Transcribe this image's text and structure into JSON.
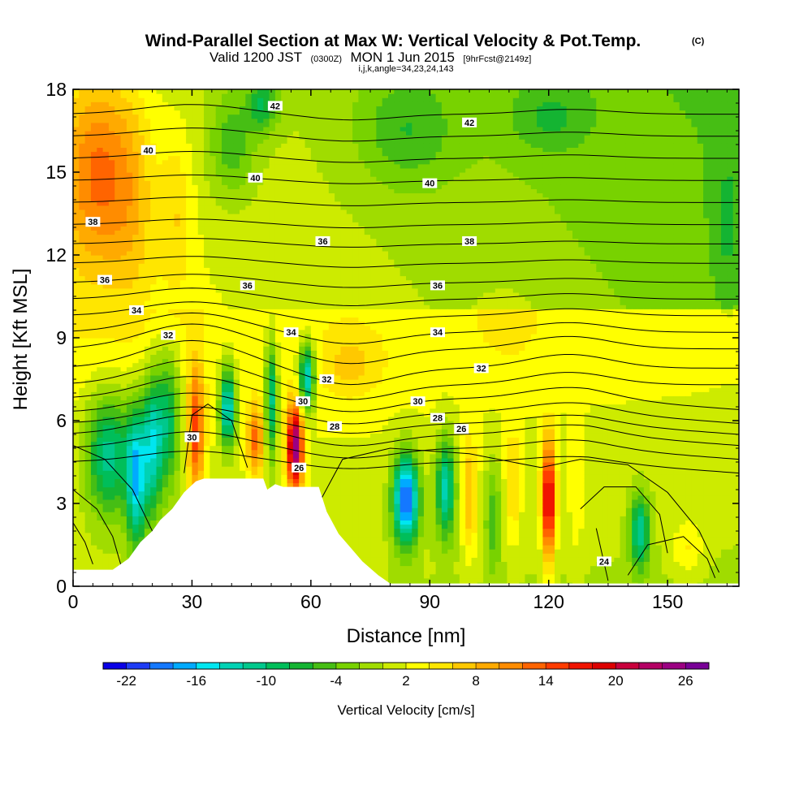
{
  "chart_data": {
    "type": "heatmap",
    "title": "Wind-Parallel Section at Max W: Vertical Velocity & Pot.Temp.",
    "title_mark": "(C)",
    "subtitle": {
      "valid": "Valid 1200 JST",
      "utc": "(0300Z)",
      "date": "MON 1 Jun 2015",
      "fcst": "[9hrFcst@2149z]"
    },
    "subtitle2": "i,j,k,angle=34,23,24,143",
    "xlabel": "Distance [nm]",
    "ylabel": "Height [Kft MSL]",
    "xlim": [
      0,
      168
    ],
    "ylim": [
      0,
      18
    ],
    "x_ticks": [
      0,
      30,
      60,
      90,
      120,
      150
    ],
    "y_ticks": [
      0,
      3,
      6,
      9,
      12,
      15,
      18
    ],
    "colorbar": {
      "label": "Vertical Velocity [cm/s]",
      "min": -24,
      "max": 28,
      "step": 2,
      "tick_labels": [
        -22,
        -16,
        -10,
        -4,
        2,
        8,
        14,
        20,
        26
      ],
      "colors": [
        "#0a00e6",
        "#1e3cf5",
        "#1478ff",
        "#00aaff",
        "#00e6f0",
        "#00d2b4",
        "#00c88c",
        "#00be5a",
        "#14b432",
        "#46be14",
        "#78d200",
        "#a0dc00",
        "#cdeb00",
        "#ffff00",
        "#ffe600",
        "#ffc800",
        "#ffaa00",
        "#ff8c00",
        "#ff6400",
        "#ff3c00",
        "#f01400",
        "#dc0000",
        "#c8003c",
        "#b40064",
        "#9b0082",
        "#780096"
      ]
    },
    "theta_contours": {
      "levels_labeled": [
        24,
        26,
        28,
        30,
        32,
        34,
        36,
        38,
        40,
        42
      ],
      "label_positions_data": [
        {
          "level": "42",
          "x": 51,
          "y": 17.4
        },
        {
          "level": "42",
          "x": 100,
          "y": 16.8
        },
        {
          "level": "40",
          "x": 19,
          "y": 15.8
        },
        {
          "level": "40",
          "x": 46,
          "y": 14.8
        },
        {
          "level": "40",
          "x": 90,
          "y": 14.6
        },
        {
          "level": "38",
          "x": 5,
          "y": 13.2
        },
        {
          "level": "38",
          "x": 100,
          "y": 12.5
        },
        {
          "level": "36",
          "x": 8,
          "y": 11.1
        },
        {
          "level": "36",
          "x": 44,
          "y": 10.9
        },
        {
          "level": "36",
          "x": 63,
          "y": 12.5
        },
        {
          "level": "36",
          "x": 92,
          "y": 10.9
        },
        {
          "level": "34",
          "x": 16,
          "y": 10.0
        },
        {
          "level": "34",
          "x": 55,
          "y": 9.2
        },
        {
          "level": "34",
          "x": 92,
          "y": 9.2
        },
        {
          "level": "32",
          "x": 24,
          "y": 9.1
        },
        {
          "level": "32",
          "x": 64,
          "y": 7.5
        },
        {
          "level": "32",
          "x": 103,
          "y": 7.9
        },
        {
          "level": "30",
          "x": 58,
          "y": 6.7
        },
        {
          "level": "30",
          "x": 87,
          "y": 6.7
        },
        {
          "level": "30",
          "x": 30,
          "y": 5.4
        },
        {
          "level": "28",
          "x": 66,
          "y": 5.8
        },
        {
          "level": "28",
          "x": 92,
          "y": 6.1
        },
        {
          "level": "26",
          "x": 98,
          "y": 5.7
        },
        {
          "level": "26",
          "x": 57,
          "y": 4.3
        },
        {
          "level": "24",
          "x": 134,
          "y": 0.9
        }
      ]
    },
    "terrain_profile": [
      [
        0,
        0.6
      ],
      [
        10,
        0.6
      ],
      [
        14,
        1.0
      ],
      [
        17,
        1.6
      ],
      [
        20,
        2.0
      ],
      [
        22,
        2.4
      ],
      [
        25,
        2.8
      ],
      [
        28,
        3.4
      ],
      [
        31,
        3.8
      ],
      [
        33,
        3.9
      ],
      [
        48,
        3.9
      ],
      [
        49,
        3.5
      ],
      [
        51,
        3.7
      ],
      [
        53,
        3.6
      ],
      [
        62,
        3.6
      ],
      [
        64,
        2.7
      ],
      [
        67,
        1.9
      ],
      [
        70,
        1.4
      ],
      [
        73,
        0.9
      ],
      [
        77,
        0.4
      ],
      [
        80,
        0.1
      ],
      [
        168,
        0.1
      ]
    ],
    "w_features": [
      {
        "x": 6,
        "y": 15,
        "w": 10,
        "sx": 9,
        "sy": 3.5
      },
      {
        "x": 15,
        "y": 14,
        "w": 4,
        "sx": 6,
        "sy": 4
      },
      {
        "x": 26,
        "y": 13.5,
        "w": 4,
        "sx": 4,
        "sy": 3
      },
      {
        "x": 40,
        "y": 16,
        "w": -6,
        "sx": 6,
        "sy": 2
      },
      {
        "x": 48,
        "y": 17.5,
        "w": -8,
        "sx": 4,
        "sy": 1
      },
      {
        "x": 84,
        "y": 16.5,
        "w": -5,
        "sx": 12,
        "sy": 2
      },
      {
        "x": 120,
        "y": 17,
        "w": -4,
        "sx": 10,
        "sy": 1.3
      },
      {
        "x": 165,
        "y": 13,
        "w": -3,
        "sx": 4,
        "sy": 3
      },
      {
        "x": 70,
        "y": 8,
        "w": 4,
        "sx": 8,
        "sy": 1.2
      },
      {
        "x": 110,
        "y": 9.5,
        "w": 2,
        "sx": 8,
        "sy": 1.5
      },
      {
        "x": 9,
        "y": 4.8,
        "w": -13,
        "sx": 6,
        "sy": 2.2
      },
      {
        "x": 16,
        "y": 4.0,
        "w": -16,
        "sx": 2.5,
        "sy": 2.5
      },
      {
        "x": 20,
        "y": 5.2,
        "w": -14,
        "sx": 2.5,
        "sy": 2.5
      },
      {
        "x": 24,
        "y": 6.0,
        "w": -11,
        "sx": 3,
        "sy": 2.5
      },
      {
        "x": 31,
        "y": 5.6,
        "w": 13,
        "sx": 2,
        "sy": 2.4
      },
      {
        "x": 39,
        "y": 6.5,
        "w": -17,
        "sx": 2,
        "sy": 1.5
      },
      {
        "x": 46,
        "y": 5.3,
        "w": 11,
        "sx": 2,
        "sy": 1.3
      },
      {
        "x": 50,
        "y": 6.8,
        "w": -13,
        "sx": 1.5,
        "sy": 2.2
      },
      {
        "x": 56,
        "y": 5.0,
        "w": 24,
        "sx": 2,
        "sy": 1.6
      },
      {
        "x": 59,
        "y": 7.6,
        "w": -17,
        "sx": 2,
        "sy": 1.2
      },
      {
        "x": 84,
        "y": 3.2,
        "w": -22,
        "sx": 3.2,
        "sy": 1.6
      },
      {
        "x": 94,
        "y": 3.6,
        "w": -14,
        "sx": 2.4,
        "sy": 1.8
      },
      {
        "x": 100,
        "y": 3.2,
        "w": 7,
        "sx": 2,
        "sy": 2.2
      },
      {
        "x": 106,
        "y": 2.5,
        "w": -6,
        "sx": 2,
        "sy": 2
      },
      {
        "x": 111,
        "y": 3.6,
        "w": 5,
        "sx": 2,
        "sy": 2.2
      },
      {
        "x": 120,
        "y": 3.1,
        "w": 20,
        "sx": 1.7,
        "sy": 2.2
      },
      {
        "x": 127,
        "y": 3.2,
        "w": 3,
        "sx": 2,
        "sy": 2.2
      },
      {
        "x": 143,
        "y": 2.0,
        "w": -12,
        "sx": 2.5,
        "sy": 1.4
      },
      {
        "x": 155,
        "y": 1.4,
        "w": 4,
        "sx": 4,
        "sy": 1
      }
    ]
  }
}
